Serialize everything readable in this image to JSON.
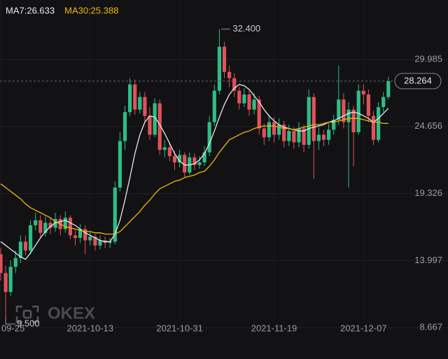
{
  "chart_data": {
    "type": "candlestick",
    "categories": [
      "09-25",
      null,
      null,
      null,
      null,
      null,
      null,
      null,
      null,
      null,
      null,
      null,
      null,
      null,
      null,
      null,
      null,
      null,
      "2021-10-13",
      null,
      null,
      null,
      null,
      null,
      null,
      null,
      null,
      null,
      null,
      null,
      null,
      null,
      null,
      null,
      null,
      null,
      "2021-10-31",
      null,
      null,
      null,
      null,
      null,
      null,
      null,
      null,
      null,
      null,
      null,
      null,
      null,
      null,
      null,
      null,
      null,
      null,
      "2021-11-19",
      null,
      null,
      null,
      null,
      null,
      null,
      null,
      null,
      null,
      null,
      null,
      null,
      null,
      null,
      null,
      null,
      null,
      "2021-12-07",
      null,
      null,
      null,
      null,
      null
    ],
    "open": [
      14.5,
      13.0,
      11.5,
      13.5,
      14.2,
      15.5,
      14.8,
      16.8,
      17.2,
      16.2,
      17.0,
      16.6,
      17.3,
      16.5,
      17.4,
      16.0,
      15.8,
      16.5,
      15.6,
      15.9,
      15.2,
      15.6,
      15.4,
      15.5,
      19.8,
      23.5,
      25.8,
      28.0,
      26.0,
      27.0,
      25.5,
      24.0,
      26.5,
      22.8,
      23.0,
      22.3,
      21.8,
      22.4,
      21.0,
      22.2,
      21.6,
      21.8,
      22.6,
      25.0,
      27.5,
      31.0,
      29.0,
      28.5,
      27.5,
      26.5,
      27.2,
      26.0,
      26.8,
      24.5,
      23.8,
      25.0,
      24.0,
      24.8,
      23.5,
      24.3,
      23.4,
      24.5,
      23.2,
      27.0,
      23.5,
      24.0,
      23.6,
      24.4,
      25.2,
      26.8,
      25.0,
      26.0,
      24.2,
      27.5,
      27.2,
      25.5,
      23.6,
      26.2,
      27.0
    ],
    "high": [
      15.0,
      13.6,
      14.0,
      14.8,
      16.0,
      16.0,
      17.2,
      17.8,
      17.6,
      17.5,
      17.4,
      17.8,
      17.6,
      17.9,
      17.6,
      16.4,
      16.9,
      16.8,
      16.3,
      16.1,
      16.0,
      15.9,
      15.8,
      20.3,
      24.2,
      26.3,
      28.5,
      28.4,
      27.4,
      27.4,
      26.2,
      26.9,
      26.8,
      23.6,
      23.4,
      22.7,
      22.8,
      22.6,
      22.6,
      22.5,
      22.3,
      23.1,
      25.5,
      28.0,
      32.4,
      31.4,
      29.5,
      28.9,
      27.8,
      27.7,
      27.5,
      27.3,
      27.1,
      24.9,
      25.6,
      25.4,
      25.3,
      25.1,
      24.8,
      24.6,
      25.0,
      24.8,
      27.6,
      27.3,
      24.6,
      24.4,
      24.9,
      25.6,
      29.5,
      27.3,
      26.6,
      26.3,
      28.0,
      28.0,
      27.6,
      25.9,
      26.6,
      27.4,
      28.6
    ],
    "low": [
      12.4,
      9.5,
      11.2,
      13.0,
      13.8,
      14.4,
      14.5,
      16.4,
      15.8,
      15.9,
      16.1,
      16.3,
      16.0,
      16.2,
      15.7,
      15.2,
      15.4,
      14.5,
      15.2,
      14.8,
      14.9,
      15.0,
      15.0,
      15.3,
      19.5,
      22.8,
      25.5,
      25.6,
      25.7,
      25.0,
      23.6,
      23.8,
      22.4,
      22.2,
      21.9,
      21.2,
      21.4,
      20.6,
      20.8,
      21.2,
      21.3,
      21.5,
      22.3,
      24.7,
      27.2,
      28.5,
      27.8,
      27.0,
      26.0,
      26.2,
      25.5,
      25.6,
      24.0,
      23.2,
      23.5,
      23.4,
      23.6,
      23.0,
      23.1,
      22.9,
      23.0,
      22.6,
      22.9,
      20.5,
      22.8,
      23.1,
      23.2,
      24.0,
      24.8,
      24.5,
      19.8,
      21.5,
      24.0,
      26.4,
      25.0,
      23.2,
      23.4,
      25.8,
      26.8
    ],
    "close": [
      13.0,
      11.5,
      13.5,
      14.2,
      15.5,
      14.8,
      16.8,
      17.2,
      16.2,
      17.0,
      16.6,
      17.3,
      16.5,
      17.4,
      16.0,
      15.8,
      16.5,
      15.6,
      15.9,
      15.2,
      15.6,
      15.4,
      15.5,
      19.8,
      23.5,
      25.8,
      28.0,
      26.0,
      27.0,
      25.5,
      24.0,
      26.5,
      22.8,
      23.0,
      22.3,
      21.8,
      22.4,
      21.0,
      22.2,
      21.6,
      21.8,
      22.6,
      25.0,
      27.5,
      31.0,
      29.0,
      28.5,
      27.5,
      26.5,
      27.2,
      26.0,
      26.8,
      24.5,
      23.8,
      25.0,
      24.0,
      24.8,
      23.5,
      24.3,
      23.4,
      24.5,
      23.2,
      27.0,
      23.5,
      24.0,
      23.6,
      24.4,
      25.2,
      26.8,
      25.0,
      26.0,
      24.2,
      27.5,
      27.2,
      25.5,
      23.6,
      26.2,
      27.0,
      28.264
    ],
    "up_color": "#2ebd85",
    "down_color": "#e0525a",
    "series": [
      {
        "name": "MA7:26.633",
        "color": "#e8e8ee",
        "values": [
          15.5,
          15.2,
          14.9,
          14.6,
          14.3,
          14.1,
          14.6,
          15.2,
          15.8,
          16.3,
          16.7,
          17.0,
          17.1,
          17.2,
          17.0,
          16.8,
          16.5,
          16.2,
          16.0,
          15.8,
          15.6,
          15.5,
          15.5,
          16.1,
          17.2,
          18.8,
          20.6,
          22.5,
          24.0,
          25.0,
          25.5,
          25.4,
          24.8,
          24.1,
          23.3,
          22.5,
          21.9,
          21.6,
          21.6,
          21.7,
          22.0,
          22.5,
          23.3,
          24.3,
          25.4,
          26.4,
          27.2,
          27.7,
          28.0,
          27.9,
          27.6,
          27.1,
          26.6,
          26.0,
          25.5,
          25.1,
          24.8,
          24.6,
          24.5,
          24.4,
          24.3,
          24.3,
          24.5,
          24.6,
          24.7,
          24.8,
          25.0,
          25.1,
          25.3,
          25.5,
          25.7,
          25.8,
          25.7,
          25.5,
          25.3,
          25.0,
          25.3,
          25.7,
          26.1
        ]
      },
      {
        "name": "MA30:25.388",
        "color": "#f0b90b",
        "values": [
          20.1,
          19.8,
          19.5,
          19.2,
          18.9,
          18.5,
          18.2,
          18.0,
          17.8,
          17.6,
          17.4,
          17.1,
          16.9,
          16.7,
          16.6,
          16.5,
          16.4,
          16.3,
          16.3,
          16.2,
          16.2,
          16.1,
          16.1,
          16.1,
          16.3,
          16.7,
          17.1,
          17.5,
          17.9,
          18.4,
          18.8,
          19.3,
          19.7,
          19.9,
          20.1,
          20.3,
          20.4,
          20.6,
          20.7,
          20.8,
          21.0,
          21.1,
          21.5,
          22.0,
          22.6,
          23.1,
          23.6,
          23.8,
          24.0,
          24.2,
          24.3,
          24.5,
          24.6,
          24.7,
          24.7,
          24.7,
          24.6,
          24.5,
          24.5,
          24.4,
          24.5,
          24.6,
          24.7,
          24.8,
          24.8,
          24.9,
          25.0,
          25.0,
          25.1,
          25.2,
          25.3,
          25.3,
          25.3,
          25.2,
          25.1,
          25.0,
          25.0,
          24.9,
          24.9
        ]
      }
    ],
    "ylim": [
      6.17,
      34.715
    ],
    "yticks": [
      29.985,
      24.656,
      19.326,
      13.997,
      8.667
    ],
    "grid": true,
    "max_label": {
      "value": 32.4,
      "label": "32.400"
    },
    "min_label": {
      "value": 9.5,
      "label": "9.500"
    },
    "watermark": "OKEX"
  }
}
